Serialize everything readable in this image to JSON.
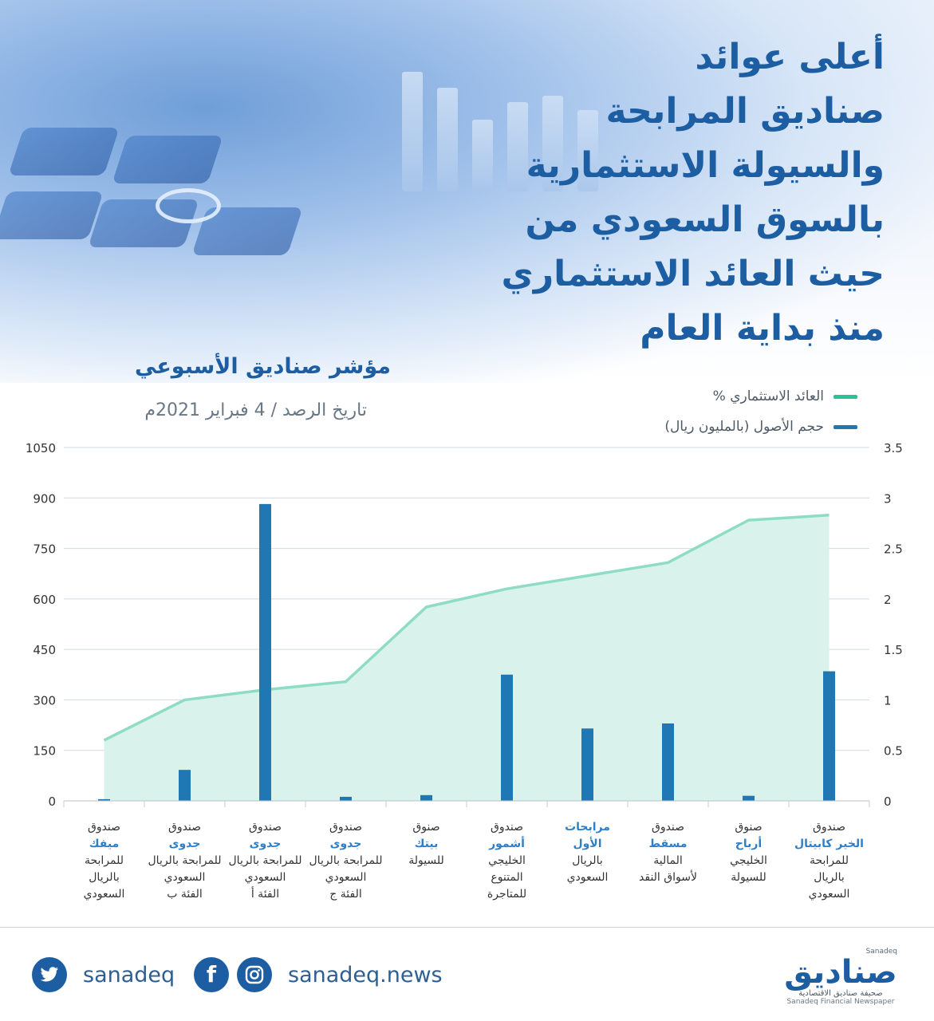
{
  "headline": {
    "lines": [
      "أعلى عوائد",
      "صناديق المرابحة",
      "والسيولة الاستثمارية",
      "بالسوق السعودي من",
      "حيث العائد الاستثماري",
      "منذ بداية العام"
    ]
  },
  "chart_header": {
    "title": "مؤشر صناديق الأسبوعي",
    "date_line": "تاريخ الرصد / 4 فبراير 2021م"
  },
  "legend": [
    {
      "label": "العائد الاستثماري %",
      "color": "#2fbf94"
    },
    {
      "label": "حجم الأصول (بالمليون ريال)",
      "color": "#1f77b4"
    }
  ],
  "chart_data": {
    "type": "bar",
    "categories": [
      {
        "top": "صندوق",
        "bold": "ميفك",
        "rest": [
          "للمرابحة",
          "بالريال",
          "السعودي"
        ]
      },
      {
        "top": "صندوق",
        "bold": "جدوى",
        "rest": [
          "للمرابحة بالريال",
          "السعودي",
          "الفئة ب"
        ]
      },
      {
        "top": "صندوق",
        "bold": "جدوى",
        "rest": [
          "للمرابحة بالريال",
          "السعودي",
          "الفئة أ"
        ]
      },
      {
        "top": "صندوق",
        "bold": "جدوى",
        "rest": [
          "للمرابحة بالريال",
          "السعودي",
          "الفئة ج"
        ]
      },
      {
        "top": "صنوق",
        "bold": "بيتك",
        "rest": [
          "للسيولة"
        ]
      },
      {
        "top": "صندوق",
        "bold": "أشمور",
        "rest": [
          "الخليجي",
          "المتنوع",
          "للمتاجرة"
        ]
      },
      {
        "top": "",
        "bold": "مرابحات الأول",
        "rest": [
          "بالريال",
          "السعودي"
        ]
      },
      {
        "top": "صندوق",
        "bold": "مسقط",
        "rest": [
          "المالية",
          "لأسواق النقد"
        ]
      },
      {
        "top": "صنوق",
        "bold": "أرباح",
        "rest": [
          "الخليجي",
          "للسيولة"
        ]
      },
      {
        "top": "صندوق",
        "bold": "الخير كابيتال",
        "rest": [
          "للمرابحة",
          "بالريال",
          "السعودي"
        ]
      }
    ],
    "series": [
      {
        "name": "حجم الأصول (بالمليون ريال)",
        "type": "bar",
        "axis": "left",
        "color": "#1f77b4",
        "values": [
          5,
          92,
          882,
          12,
          17,
          375,
          215,
          230,
          15,
          385
        ]
      },
      {
        "name": "العائد الاستثماري %",
        "type": "area",
        "axis": "right",
        "color": "#8fdcc4",
        "fill": "#d9f3ec",
        "values": [
          0.6,
          1.0,
          1.1,
          1.18,
          1.92,
          2.1,
          2.23,
          2.36,
          2.78,
          2.83
        ]
      }
    ],
    "y_left": {
      "min": 0,
      "max": 1050,
      "ticks": [
        "0",
        "150",
        "300",
        "450",
        "600",
        "750",
        "900",
        "1050"
      ]
    },
    "y_right": {
      "min": 0,
      "max": 3.5,
      "ticks": [
        "0",
        "0.5",
        "1",
        "1.5",
        "2",
        "2.5",
        "3",
        "3.5"
      ]
    },
    "grid": "horizontal",
    "legend_position": "top-right"
  },
  "footer": {
    "twitter_handle": "sanadeq",
    "site": "sanadeq.news",
    "brand_latin": "Sanadeq",
    "brand_name": "صناديق",
    "brand_tagline_ar": "صحيفة صناديق الاقتصادية",
    "brand_tagline_en": "Sanadeq Financial Newspaper"
  }
}
